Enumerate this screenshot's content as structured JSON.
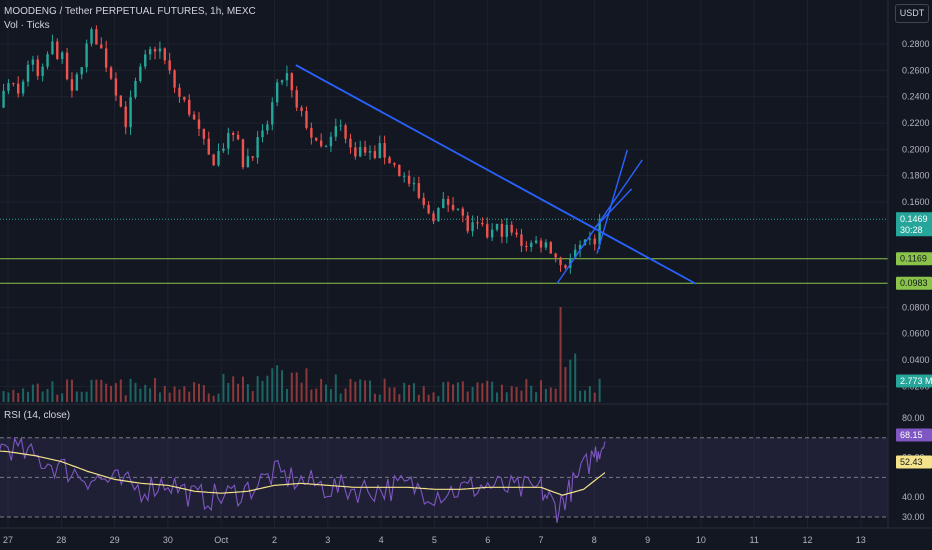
{
  "header": {
    "symbol_line": "MOODENG / Tether PERPETUAL FUTURES, 1h, MEXC",
    "volume_line": "Vol · Ticks",
    "rsi_line": "RSI (14, close)",
    "currency_button": "USDT"
  },
  "colors": {
    "background": "#131722",
    "grid": "#1e222d",
    "up": "#26a69a",
    "down": "#ef5350",
    "trendline": "#2962ff",
    "level": "#8bc34a",
    "rsi": "#7e57c2",
    "rsi_ma": "#f4e38a",
    "rsi_band": "#7e57c2"
  },
  "chart_data": {
    "type": "candlestick",
    "price_axis": {
      "ticks": [
        "0.2800",
        "0.2600",
        "0.2400",
        "0.2200",
        "0.2000",
        "0.1800",
        "0.1600",
        "0.0800",
        "0.0600",
        "0.0400",
        "0.0200"
      ],
      "range": [
        0.0,
        0.295
      ]
    },
    "x_axis": {
      "ticks": [
        "27",
        "28",
        "29",
        "30",
        "Oct",
        "2",
        "3",
        "4",
        "5",
        "6",
        "7",
        "8",
        "9",
        "10",
        "11",
        "12",
        "13"
      ]
    },
    "badges": {
      "last_price": "0.1469",
      "countdown": "30:28",
      "level_1": "0.1169",
      "level_2": "0.0983",
      "volume": "2.773 M",
      "rsi": "68.15",
      "rsi_ma": "52.43"
    },
    "horizontal_levels": [
      0.1169,
      0.0983
    ],
    "last_price": 0.1469,
    "candles_path_day_price": [
      [
        26.0,
        0.17
      ],
      [
        26.3,
        0.19
      ],
      [
        26.6,
        0.2
      ],
      [
        26.8,
        0.23
      ],
      [
        27.0,
        0.25
      ],
      [
        27.2,
        0.24
      ],
      [
        27.4,
        0.27
      ],
      [
        27.6,
        0.25
      ],
      [
        27.8,
        0.28
      ],
      [
        28.0,
        0.27
      ],
      [
        28.2,
        0.24
      ],
      [
        28.4,
        0.27
      ],
      [
        28.6,
        0.29
      ],
      [
        28.8,
        0.27
      ],
      [
        29.0,
        0.25
      ],
      [
        29.2,
        0.22
      ],
      [
        29.4,
        0.25
      ],
      [
        29.6,
        0.27
      ],
      [
        29.8,
        0.28
      ],
      [
        30.0,
        0.26
      ],
      [
        30.2,
        0.24
      ],
      [
        30.4,
        0.23
      ],
      [
        30.6,
        0.21
      ],
      [
        30.8,
        0.19
      ],
      [
        31.0,
        0.2
      ],
      [
        31.2,
        0.22
      ],
      [
        31.4,
        0.19
      ],
      [
        31.6,
        0.2
      ],
      [
        31.8,
        0.21
      ],
      [
        32.0,
        0.24
      ],
      [
        32.2,
        0.26
      ],
      [
        32.4,
        0.23
      ],
      [
        32.6,
        0.22
      ],
      [
        32.8,
        0.2
      ],
      [
        33.0,
        0.2
      ],
      [
        33.2,
        0.22
      ],
      [
        33.4,
        0.2
      ],
      [
        33.6,
        0.2
      ],
      [
        33.8,
        0.195
      ],
      [
        34.0,
        0.2
      ],
      [
        34.2,
        0.19
      ],
      [
        34.4,
        0.18
      ],
      [
        34.6,
        0.17
      ],
      [
        34.8,
        0.155
      ],
      [
        35.0,
        0.15
      ],
      [
        35.2,
        0.16
      ],
      [
        35.4,
        0.16
      ],
      [
        35.6,
        0.14
      ],
      [
        35.8,
        0.14
      ],
      [
        36.0,
        0.135
      ],
      [
        36.2,
        0.14
      ],
      [
        36.4,
        0.138
      ],
      [
        36.6,
        0.13
      ],
      [
        36.8,
        0.128
      ],
      [
        37.0,
        0.13
      ],
      [
        37.2,
        0.125
      ],
      [
        37.4,
        0.11
      ],
      [
        37.6,
        0.118
      ],
      [
        37.8,
        0.125
      ],
      [
        38.0,
        0.13
      ],
      [
        38.15,
        0.1469
      ]
    ],
    "trendline_day_price": [
      [
        32.4,
        0.264
      ],
      [
        39.9,
        0.098
      ]
    ],
    "channel_lower_day_price": [
      [
        37.3,
        0.098
      ],
      [
        38.9,
        0.192
      ]
    ],
    "channel_upper_day_price": [
      [
        38.0,
        0.14
      ],
      [
        38.7,
        0.17
      ]
    ],
    "rsi_axis": {
      "ticks": [
        "80.00",
        "60.00",
        "40.00",
        "30.00"
      ],
      "band": [
        30,
        70
      ],
      "mid": 50
    },
    "rsi_path_day_value": [
      [
        26.0,
        68
      ],
      [
        26.5,
        62
      ],
      [
        27.0,
        66
      ],
      [
        27.5,
        60
      ],
      [
        28.0,
        55
      ],
      [
        28.5,
        50
      ],
      [
        29.0,
        48
      ],
      [
        29.5,
        44
      ],
      [
        30.0,
        48
      ],
      [
        30.5,
        40
      ],
      [
        31.0,
        40
      ],
      [
        31.5,
        44
      ],
      [
        32.0,
        52
      ],
      [
        32.5,
        48
      ],
      [
        33.0,
        45
      ],
      [
        33.5,
        44
      ],
      [
        34.0,
        44
      ],
      [
        34.5,
        46
      ],
      [
        35.0,
        42
      ],
      [
        35.5,
        44
      ],
      [
        36.0,
        46
      ],
      [
        36.5,
        44
      ],
      [
        37.0,
        44
      ],
      [
        37.3,
        34
      ],
      [
        37.6,
        46
      ],
      [
        38.0,
        62
      ],
      [
        38.2,
        68.15
      ]
    ],
    "rsi_ma_path_day_value": [
      [
        26.0,
        66
      ],
      [
        26.5,
        64
      ],
      [
        27.0,
        63
      ],
      [
        27.5,
        61
      ],
      [
        28.0,
        58
      ],
      [
        28.5,
        53
      ],
      [
        29.0,
        49
      ],
      [
        29.5,
        47
      ],
      [
        30.0,
        46
      ],
      [
        30.5,
        43
      ],
      [
        31.0,
        42
      ],
      [
        31.5,
        43
      ],
      [
        32.0,
        46
      ],
      [
        32.5,
        47
      ],
      [
        33.0,
        46
      ],
      [
        33.5,
        45
      ],
      [
        34.0,
        45
      ],
      [
        34.5,
        45
      ],
      [
        35.0,
        44
      ],
      [
        35.5,
        44
      ],
      [
        36.0,
        45
      ],
      [
        36.5,
        45
      ],
      [
        37.0,
        45
      ],
      [
        37.4,
        41
      ],
      [
        37.8,
        44
      ],
      [
        38.2,
        52.43
      ]
    ]
  }
}
